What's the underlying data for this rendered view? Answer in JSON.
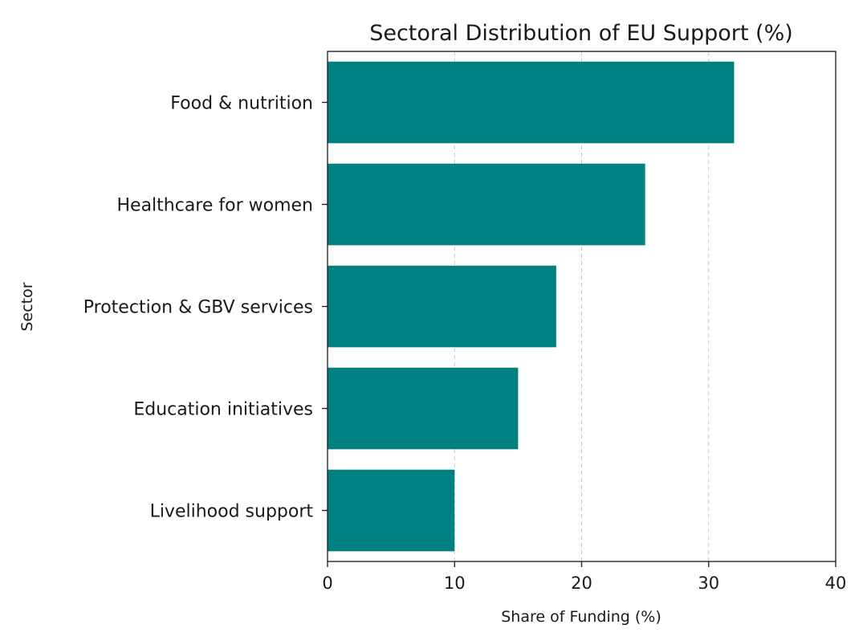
{
  "chart_data": {
    "type": "bar",
    "orientation": "horizontal",
    "title": "Sectoral Distribution of EU Support (%)",
    "xlabel": "Share of Funding (%)",
    "ylabel": "Sector",
    "categories": [
      "Food & nutrition",
      "Healthcare for women",
      "Protection & GBV services",
      "Education initiatives",
      "Livelihood support"
    ],
    "values": [
      32,
      25,
      18,
      15,
      10
    ],
    "xlim": [
      0,
      40
    ],
    "xticks": [
      "0",
      "10",
      "20",
      "30",
      "40"
    ],
    "grid": "x-axis dashed",
    "legend": "none",
    "bar_color": "#008080"
  }
}
